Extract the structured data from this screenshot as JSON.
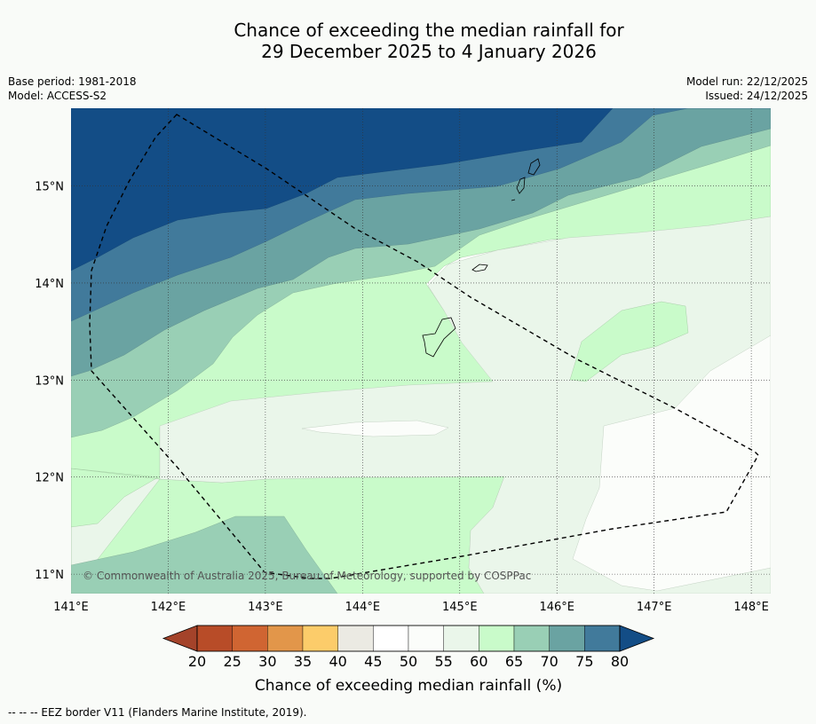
{
  "title": {
    "line1": "Chance of exceeding the median rainfall for",
    "line2": "29 December 2025 to 4 January 2026"
  },
  "meta": {
    "base_period": "Base period: 1981-2018",
    "model": "Model: ACCESS-S2",
    "model_run": "Model run: 22/12/2025",
    "issued": "Issued: 24/12/2025"
  },
  "map": {
    "lon_range": [
      141.0,
      148.2
    ],
    "lat_range": [
      10.8,
      15.8
    ],
    "lon_ticks": [
      141,
      142,
      143,
      144,
      145,
      146,
      147,
      148
    ],
    "lat_ticks": [
      11,
      12,
      13,
      14,
      15
    ],
    "lon_labels": [
      "141°E",
      "142°E",
      "143°E",
      "144°E",
      "145°E",
      "146°E",
      "147°E",
      "148°E"
    ],
    "lat_labels": [
      "11°N",
      "12°N",
      "13°N",
      "14°N",
      "15°N"
    ],
    "copyright": "© Commonwealth of Australia 2025, Bureau of Meteorology, supported by COSPPac"
  },
  "colorbar": {
    "ticks": [
      "20",
      "25",
      "30",
      "35",
      "40",
      "45",
      "50",
      "55",
      "60",
      "65",
      "70",
      "75",
      "80"
    ],
    "label": "Chance of exceeding median rainfall (%)",
    "colors": [
      "#a4432a",
      "#b84c28",
      "#d06532",
      "#e2964a",
      "#fccc6a",
      "#ebeae3",
      "#ffffff",
      "#fbfdfa",
      "#eaf6ea",
      "#c9fbca",
      "#99cfb5",
      "#6aa3a2",
      "#417a9b",
      "#134d86"
    ]
  },
  "footer": "--  --  -- EEZ border V11 (Flanders Marine Institute, 2019)."
}
